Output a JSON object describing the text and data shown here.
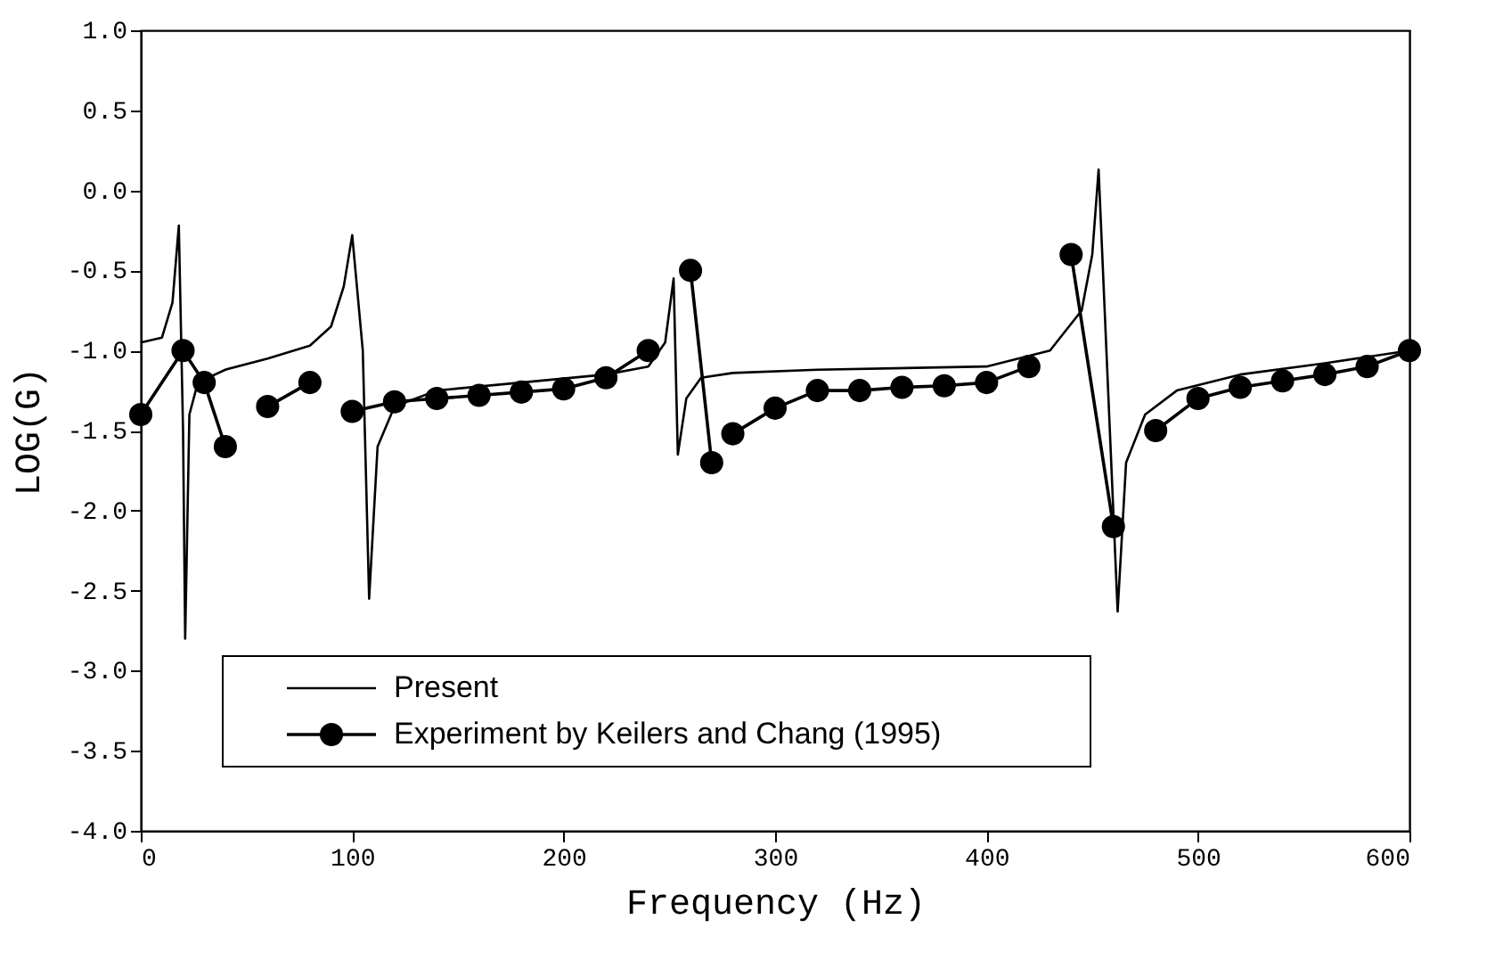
{
  "chart_data": {
    "type": "line",
    "xlabel": "Frequency (Hz)",
    "ylabel": "LOG(G)",
    "xlim": [
      0,
      600
    ],
    "xticks": [
      0,
      100,
      200,
      300,
      400,
      500,
      600
    ],
    "ylim": [
      -4.0,
      1.0
    ],
    "yticks": [
      {
        "value": 1,
        "label": "1.0"
      },
      {
        "value": 0.5,
        "label": "0.5"
      },
      {
        "value": 0,
        "label": "0.0"
      },
      {
        "value": -0.5,
        "label": "-0.5"
      },
      {
        "value": -1,
        "label": "-1.0"
      },
      {
        "value": -1.5,
        "label": "-1.5"
      },
      {
        "value": -2,
        "label": "-2.0"
      },
      {
        "value": -2.5,
        "label": "-2.5"
      },
      {
        "value": -3,
        "label": "-3.0"
      },
      {
        "value": -3.5,
        "label": "-3.5"
      },
      {
        "value": -4,
        "label": "-4.0"
      }
    ],
    "grid": false,
    "legend": "bottom left",
    "series": [
      {
        "name": "Present",
        "color": "#000000",
        "marker": "none",
        "line_style": "solid",
        "x": [
          0,
          10,
          15,
          18,
          20,
          21,
          23,
          27,
          40,
          60,
          80,
          90,
          96,
          100,
          105,
          108,
          112,
          120,
          140,
          180,
          220,
          240,
          248,
          252,
          254,
          258,
          265,
          280,
          320,
          400,
          430,
          445,
          450,
          453,
          462,
          466,
          475,
          490,
          520,
          560,
          600
        ],
        "values": [
          -0.95,
          -0.92,
          -0.7,
          -0.22,
          -1.5,
          -2.8,
          -1.4,
          -1.2,
          -1.12,
          -1.05,
          -0.97,
          -0.85,
          -0.6,
          -0.28,
          -1.0,
          -2.55,
          -1.6,
          -1.35,
          -1.25,
          -1.2,
          -1.15,
          -1.1,
          -0.95,
          -0.55,
          -1.65,
          -1.3,
          -1.17,
          -1.14,
          -1.12,
          -1.1,
          -1.0,
          -0.75,
          -0.4,
          0.13,
          -2.63,
          -1.7,
          -1.4,
          -1.25,
          -1.15,
          -1.08,
          -1.0
        ]
      },
      {
        "name": "Experiment by Keilers and Chang (1995)",
        "color": "#000000",
        "marker": "circle",
        "line_style": "solid",
        "x": [
          0,
          20,
          30,
          40,
          50,
          60,
          80,
          90,
          100,
          120,
          140,
          160,
          180,
          200,
          220,
          240,
          250,
          260,
          270,
          275,
          280,
          300,
          320,
          340,
          360,
          380,
          400,
          420,
          430,
          440,
          460,
          470,
          480,
          500,
          520,
          540,
          560,
          580,
          600
        ],
        "values": [
          -1.4,
          -1.0,
          -1.2,
          -1.6,
          null,
          -1.35,
          -1.2,
          null,
          -1.38,
          -1.32,
          -1.3,
          -1.28,
          -1.26,
          -1.24,
          -1.17,
          -1.0,
          null,
          -0.5,
          -1.7,
          null,
          -1.52,
          -1.36,
          -1.25,
          -1.25,
          -1.23,
          -1.22,
          -1.2,
          -1.1,
          null,
          -0.4,
          -2.1,
          null,
          -1.5,
          -1.3,
          -1.23,
          -1.19,
          -1.15,
          -1.1,
          -1.0
        ]
      }
    ]
  }
}
